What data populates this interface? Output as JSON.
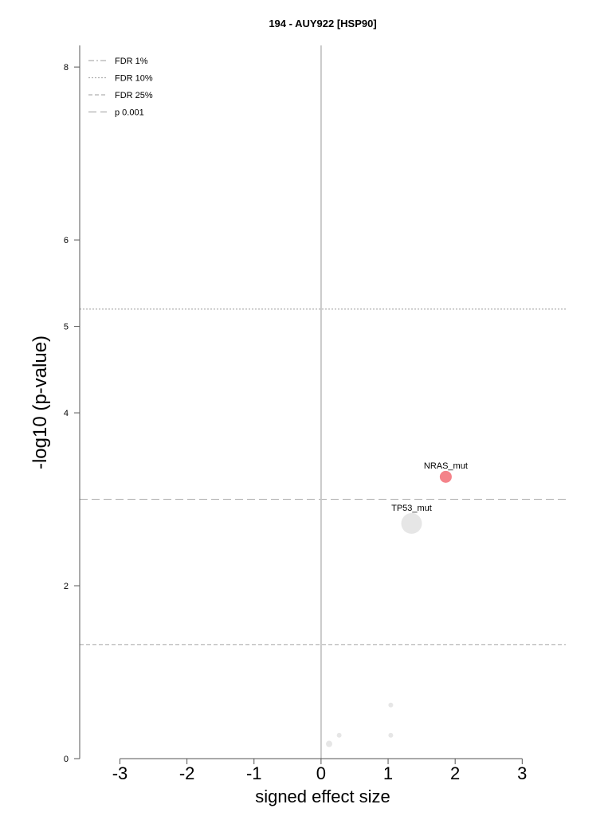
{
  "chart_data": {
    "type": "scatter",
    "title": "194 - AUY922 [HSP90]",
    "xlabel": "signed effect size",
    "ylabel": "-log10 (p-value)",
    "xlim": [
      -3.6,
      3.65
    ],
    "ylim": [
      0,
      8.25
    ],
    "xticks": [
      -3,
      -2,
      -1,
      0,
      1,
      2,
      3
    ],
    "yticks": [
      0,
      2,
      4,
      5,
      6,
      8
    ],
    "legend": {
      "position": "top-left",
      "entries": [
        {
          "label": "FDR 1%",
          "style": "dash-dot"
        },
        {
          "label": "FDR 10%",
          "style": "dotted"
        },
        {
          "label": "FDR 25%",
          "style": "dashed"
        },
        {
          "label": "p 0.001",
          "style": "long-dash"
        }
      ]
    },
    "thresholds": [
      {
        "legend": "FDR 10%",
        "y": 5.2,
        "style": "dotted"
      },
      {
        "legend": "p 0.001",
        "y": 3.0,
        "style": "long-dash"
      },
      {
        "legend": "FDR 25%",
        "y": 1.32,
        "style": "dashed"
      }
    ],
    "points": [
      {
        "label": "NRAS_mut",
        "x": 1.86,
        "y": 3.26,
        "size": "medium",
        "color": "#f4838a"
      },
      {
        "label": "TP53_mut",
        "x": 1.35,
        "y": 2.72,
        "size": "large",
        "color": "#e6e6e6"
      },
      {
        "label": "",
        "x": 1.04,
        "y": 0.62,
        "size": "tiny",
        "color": "#e6e6e6"
      },
      {
        "label": "",
        "x": 1.04,
        "y": 0.27,
        "size": "tiny",
        "color": "#e6e6e6"
      },
      {
        "label": "",
        "x": 0.27,
        "y": 0.27,
        "size": "tiny",
        "color": "#e6e6e6"
      },
      {
        "label": "",
        "x": 0.12,
        "y": 0.17,
        "size": "small",
        "color": "#e6e6e6"
      }
    ],
    "colors": {
      "axis": "#555555",
      "zero_line": "#c8c8c8",
      "threshold": "#b0b0b0"
    }
  }
}
